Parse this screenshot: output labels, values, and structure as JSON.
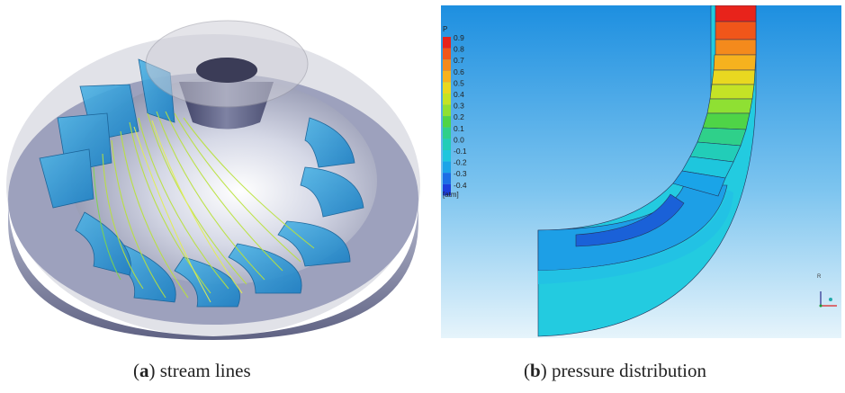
{
  "figure": {
    "panel_a": {
      "letter": "a",
      "caption": "stream lines"
    },
    "panel_b": {
      "letter": "b",
      "caption": "pressure distribution",
      "legend": {
        "variable": "P",
        "unit": "[atm]",
        "ticks": [
          "0.9",
          "0.8",
          "0.7",
          "0.6",
          "0.5",
          "0.4",
          "0.3",
          "0.2",
          "0.1",
          "0.0",
          "-0.1",
          "-0.2",
          "-0.3",
          "-0.4"
        ],
        "colors": [
          "#e8231b",
          "#f0561a",
          "#f48a1c",
          "#f6b21e",
          "#e9d820",
          "#c4e326",
          "#8fe033",
          "#4fd447",
          "#2fd08a",
          "#22cdb8",
          "#1ec6dd",
          "#1aa4e8",
          "#1b6fe6",
          "#1c3fdc"
        ]
      },
      "axis_glyph": {
        "vertical": "R",
        "horizontal": "X"
      }
    },
    "colors": {
      "background_gradient_top": "#1d8fe0",
      "background_gradient_bottom": "#e6f4fb"
    }
  }
}
